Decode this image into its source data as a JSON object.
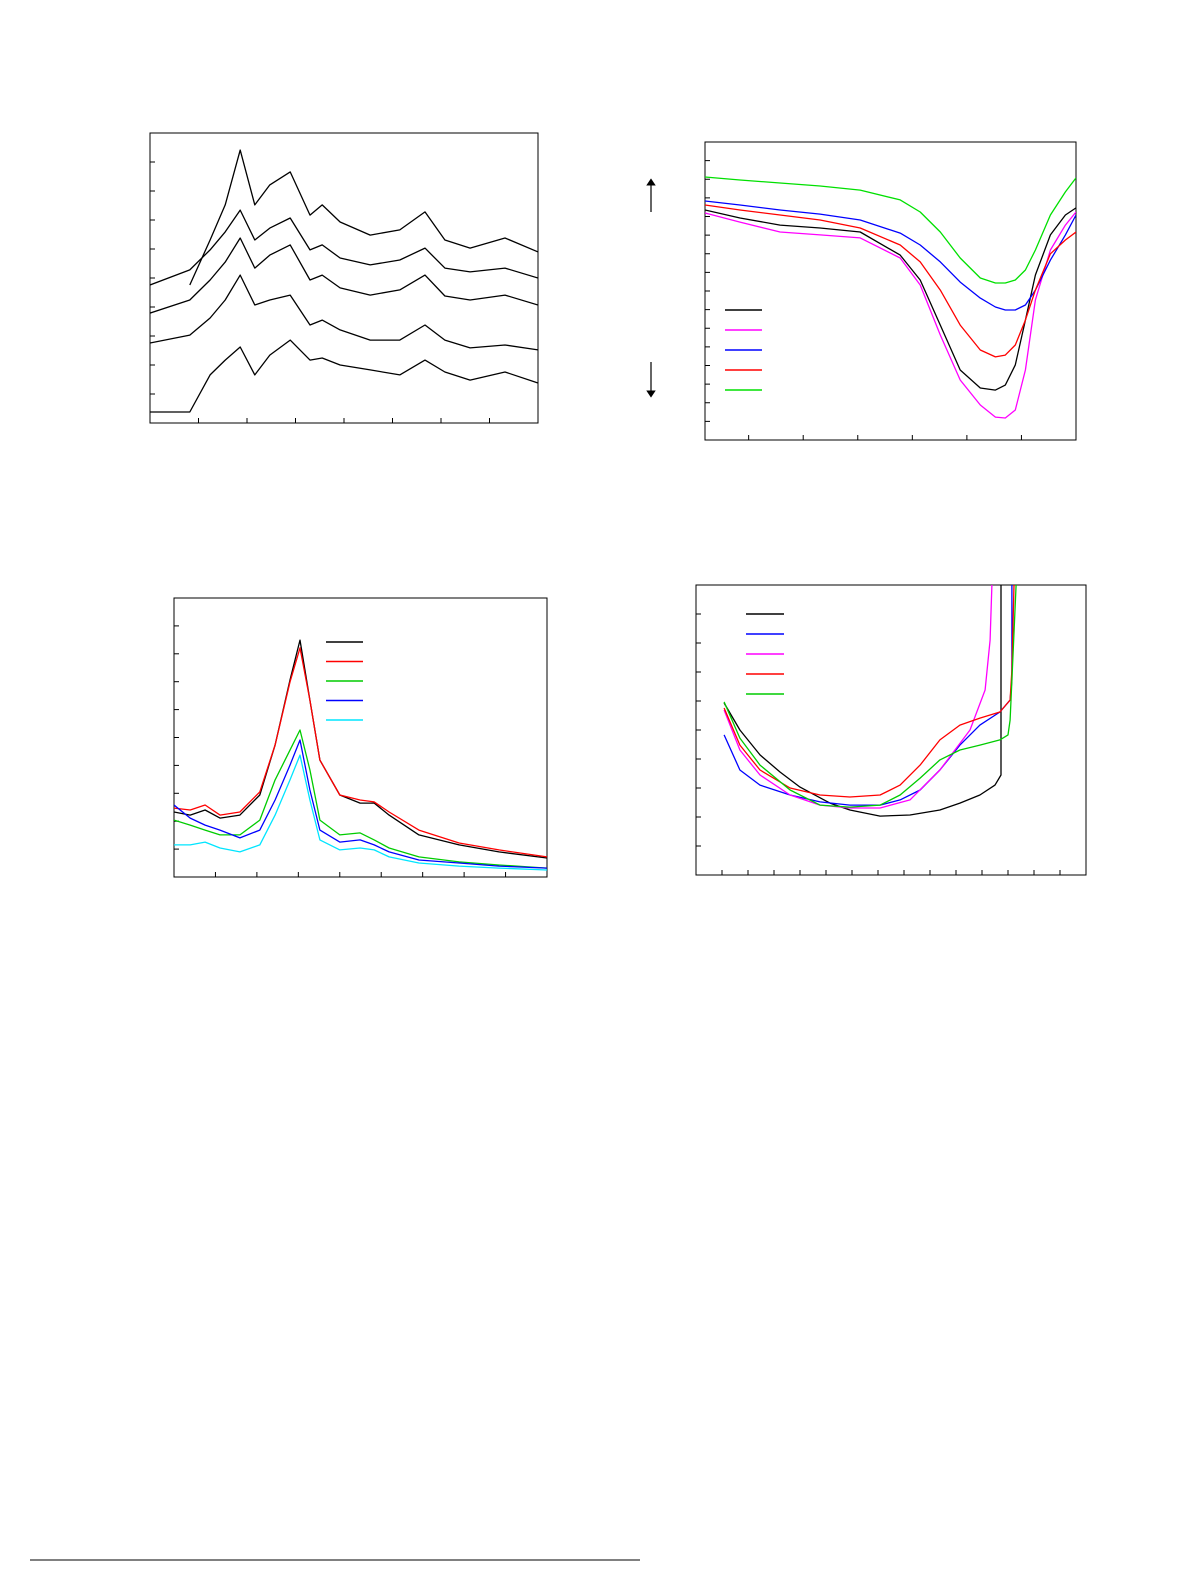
{
  "chart_data": [
    {
      "type": "line",
      "xlim": [
        0,
        8
      ],
      "xticks": [
        1,
        2,
        3,
        4,
        5,
        6,
        7
      ],
      "ylim": [
        0,
        10
      ],
      "yticks": [
        1,
        2,
        3,
        4,
        5,
        6,
        7,
        8,
        9
      ],
      "x": [
        0,
        0.82,
        1.24,
        1.55,
        1.86,
        2.16,
        2.47,
        2.89,
        3.3,
        3.55,
        3.92,
        4.54,
        5.15,
        5.67,
        6.08,
        6.6,
        7.32,
        8.0
      ],
      "series": [
        {
          "color": "#000000",
          "values": [
            null,
            4.76,
            6.31,
            7.52,
            9.41,
            7.52,
            8.21,
            8.66,
            7.17,
            7.52,
            6.93,
            6.48,
            6.66,
            7.28,
            6.31,
            6.03,
            6.38,
            5.9
          ]
        },
        {
          "color": "#000000",
          "values": [
            4.76,
            5.28,
            5.97,
            6.59,
            7.34,
            6.31,
            6.72,
            7.07,
            5.97,
            6.14,
            5.69,
            5.45,
            5.62,
            6.03,
            5.34,
            5.21,
            5.34,
            5.0
          ]
        },
        {
          "color": "#000000",
          "values": [
            3.79,
            4.24,
            4.93,
            5.55,
            6.38,
            5.34,
            5.79,
            6.14,
            4.93,
            5.1,
            4.66,
            4.41,
            4.59,
            5.1,
            4.38,
            4.24,
            4.41,
            4.07
          ]
        },
        {
          "color": "#000000",
          "values": [
            2.76,
            3.03,
            3.62,
            4.24,
            5.1,
            4.07,
            4.24,
            4.41,
            3.38,
            3.55,
            3.21,
            2.86,
            2.86,
            3.38,
            2.86,
            2.59,
            2.69,
            2.52
          ]
        },
        {
          "color": "#000000",
          "values": [
            0.38,
            0.38,
            1.66,
            2.17,
            2.62,
            1.66,
            2.34,
            2.86,
            2.17,
            2.24,
            2.0,
            1.83,
            1.66,
            2.17,
            1.76,
            1.48,
            1.76,
            1.38
          ]
        }
      ]
    },
    {
      "type": "line",
      "legend": "center-left",
      "xlim": [
        0,
        340
      ],
      "xticks": [
        40,
        90,
        140,
        190,
        240,
        290
      ],
      "ylim": [
        0,
        16
      ],
      "yticks": [
        1,
        2,
        3,
        4,
        5,
        6,
        7,
        8,
        9,
        10,
        11,
        12,
        13,
        14,
        15
      ],
      "x": [
        0,
        32.1,
        68.8,
        105.5,
        142.2,
        178.9,
        197.2,
        215.6,
        233.9,
        252.3,
        266.1,
        275.2,
        284.4,
        293.6,
        302.8,
        316.5,
        330.3,
        340
      ],
      "series": [
        {
          "color": "#000000",
          "values": [
            12.35,
            11.92,
            11.54,
            11.38,
            11.17,
            9.93,
            8.59,
            6.17,
            3.76,
            2.79,
            2.68,
            2.95,
            4.03,
            6.44,
            8.86,
            11.01,
            12.08,
            12.46
          ]
        },
        {
          "color": "#ff00ff",
          "values": [
            12.19,
            11.7,
            11.17,
            11.01,
            10.85,
            9.77,
            8.32,
            5.64,
            3.22,
            1.88,
            1.23,
            1.18,
            1.61,
            3.76,
            7.52,
            10.2,
            11.54,
            12.24
          ]
        },
        {
          "color": "#0000ff",
          "values": [
            12.83,
            12.62,
            12.35,
            12.13,
            11.81,
            11.11,
            10.47,
            9.56,
            8.48,
            7.62,
            7.14,
            6.98,
            6.98,
            7.25,
            8.05,
            9.66,
            11.01,
            12.08
          ]
        },
        {
          "color": "#ff0000",
          "values": [
            12.62,
            12.35,
            12.08,
            11.81,
            11.38,
            10.47,
            9.56,
            8.05,
            6.17,
            4.83,
            4.46,
            4.56,
            5.1,
            6.44,
            8.05,
            10.0,
            10.74,
            11.17
          ]
        },
        {
          "color": "#00e000",
          "values": [
            14.12,
            13.96,
            13.8,
            13.64,
            13.42,
            12.89,
            12.24,
            11.17,
            9.77,
            8.7,
            8.43,
            8.43,
            8.59,
            9.13,
            10.2,
            12.08,
            13.32,
            14.07
          ]
        }
      ]
    },
    {
      "type": "line",
      "legend": "top-center",
      "xlim": [
        0,
        9
      ],
      "xticks": [
        1,
        2,
        3,
        4,
        5,
        6,
        7,
        8
      ],
      "ylim": [
        0,
        10
      ],
      "yticks": [
        1,
        2,
        3,
        4,
        5,
        6,
        7,
        8,
        9
      ],
      "x": [
        0,
        0.39,
        0.75,
        1.11,
        1.59,
        2.07,
        2.44,
        2.8,
        3.04,
        3.28,
        3.52,
        4.0,
        4.49,
        4.83,
        5.19,
        5.91,
        6.88,
        7.84,
        9.0
      ],
      "series": [
        {
          "color": "#000000",
          "values": [
            2.33,
            2.22,
            2.4,
            2.11,
            2.22,
            2.94,
            4.73,
            7.06,
            8.49,
            6.34,
            4.19,
            2.94,
            2.65,
            2.65,
            2.22,
            1.51,
            1.15,
            0.9,
            0.68
          ]
        },
        {
          "color": "#ff0000",
          "values": [
            2.47,
            2.4,
            2.58,
            2.22,
            2.33,
            3.05,
            4.73,
            6.99,
            8.21,
            6.34,
            4.19,
            2.94,
            2.76,
            2.69,
            2.33,
            1.68,
            1.22,
            0.97,
            0.72
          ]
        },
        {
          "color": "#00cc00",
          "values": [
            2.04,
            1.86,
            1.68,
            1.51,
            1.51,
            2.04,
            3.48,
            4.55,
            5.27,
            3.84,
            2.04,
            1.51,
            1.58,
            1.33,
            1.04,
            0.72,
            0.54,
            0.43,
            0.32
          ]
        },
        {
          "color": "#0000ff",
          "values": [
            2.58,
            2.11,
            1.86,
            1.68,
            1.4,
            1.68,
            2.76,
            4.01,
            4.91,
            3.12,
            1.68,
            1.25,
            1.33,
            1.15,
            0.9,
            0.61,
            0.5,
            0.39,
            0.32
          ]
        },
        {
          "color": "#00e5ff",
          "values": [
            1.15,
            1.15,
            1.25,
            1.04,
            0.9,
            1.15,
            2.22,
            3.48,
            4.37,
            2.76,
            1.33,
            0.97,
            1.04,
            0.97,
            0.72,
            0.5,
            0.39,
            0.32,
            0.25
          ]
        }
      ]
    },
    {
      "type": "line",
      "legend": "top-left",
      "xlim": [
        0,
        15
      ],
      "xticks": [
        1,
        2,
        3,
        4,
        5,
        6,
        7,
        8,
        9,
        10,
        11,
        12,
        13,
        14
      ],
      "ylim": [
        0,
        10
      ],
      "yticks": [
        1,
        2,
        3,
        4,
        5,
        6,
        7,
        8,
        9
      ],
      "series": [
        {
          "color": "#000000",
          "x": [
            1.08,
            1.69,
            2.46,
            3.23,
            4.0,
            5.15,
            5.92,
            7.08,
            8.23,
            9.38,
            10.15,
            10.92,
            11.5,
            11.73,
            11.73
          ],
          "values": [
            5.93,
            5.0,
            4.14,
            3.55,
            3.03,
            2.48,
            2.24,
            2.03,
            2.07,
            2.24,
            2.48,
            2.76,
            3.1,
            3.45,
            10
          ]
        },
        {
          "color": "#0000ff",
          "x": [
            1.08,
            1.69,
            2.46,
            3.62,
            4.77,
            5.92,
            7.08,
            7.85,
            8.62,
            9.38,
            10.15,
            10.92,
            11.69,
            12.08,
            12.15,
            12.15
          ],
          "values": [
            4.83,
            3.62,
            3.1,
            2.76,
            2.52,
            2.41,
            2.41,
            2.59,
            2.93,
            3.62,
            4.48,
            5.17,
            5.62,
            6.03,
            6.72,
            10
          ]
        },
        {
          "color": "#ff00ff",
          "x": [
            1.08,
            1.69,
            2.46,
            3.62,
            4.77,
            5.92,
            7.08,
            8.23,
            9.38,
            10.54,
            11.12,
            11.31,
            11.38
          ],
          "values": [
            5.69,
            4.31,
            3.45,
            2.76,
            2.41,
            2.31,
            2.31,
            2.59,
            3.62,
            5.0,
            6.38,
            8.1,
            10
          ]
        },
        {
          "color": "#ff0000",
          "x": [
            1.08,
            1.69,
            2.46,
            3.62,
            4.77,
            5.92,
            7.08,
            7.85,
            8.62,
            9.38,
            10.15,
            10.92,
            11.69,
            12.08,
            12.15,
            12.23
          ],
          "values": [
            5.76,
            4.48,
            3.62,
            3.0,
            2.76,
            2.69,
            2.76,
            3.1,
            3.79,
            4.66,
            5.17,
            5.41,
            5.62,
            6.03,
            7.07,
            10
          ]
        },
        {
          "color": "#00cc00",
          "x": [
            1.08,
            1.69,
            2.46,
            3.62,
            4.77,
            5.92,
            7.08,
            7.85,
            8.62,
            9.38,
            10.15,
            10.92,
            11.69,
            12.0,
            12.08,
            12.15,
            12.31
          ],
          "values": [
            5.97,
            4.72,
            3.79,
            2.93,
            2.41,
            2.34,
            2.41,
            2.76,
            3.34,
            3.97,
            4.31,
            4.48,
            4.66,
            4.83,
            5.34,
            6.72,
            10
          ]
        }
      ]
    }
  ]
}
